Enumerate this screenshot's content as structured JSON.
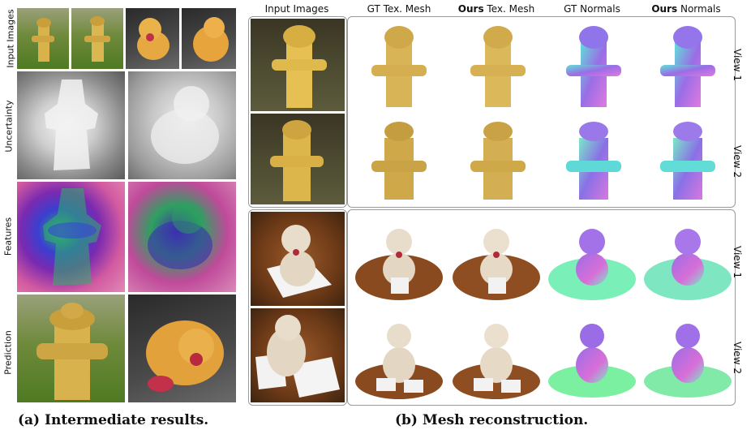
{
  "left_panel": {
    "row_labels": [
      "Input Images",
      "Uncertainty",
      "Features",
      "Prediction"
    ],
    "caption": "(a) Intermediate results."
  },
  "right_panel": {
    "column_headers": [
      {
        "bold": "",
        "text": "Input Images"
      },
      {
        "bold": "",
        "text": "GT Tex. Mesh"
      },
      {
        "bold": "Ours",
        "text": " Tex. Mesh"
      },
      {
        "bold": "",
        "text": "GT Normals"
      },
      {
        "bold": "Ours",
        "text": " Normals"
      }
    ],
    "view_labels": [
      "View 1",
      "View 2",
      "View 1",
      "View 2"
    ],
    "caption": "(b) Mesh reconstruction."
  },
  "colors": {
    "hydrant": "#d9b24a",
    "hydrant_mesh": "#d8b457",
    "bear": "#e3d6c2",
    "normal_purple": "#9a6de6",
    "normal_cyan": "#5fe0d8",
    "normal_green": "#7af0a0",
    "border": "#9a9a9a"
  }
}
